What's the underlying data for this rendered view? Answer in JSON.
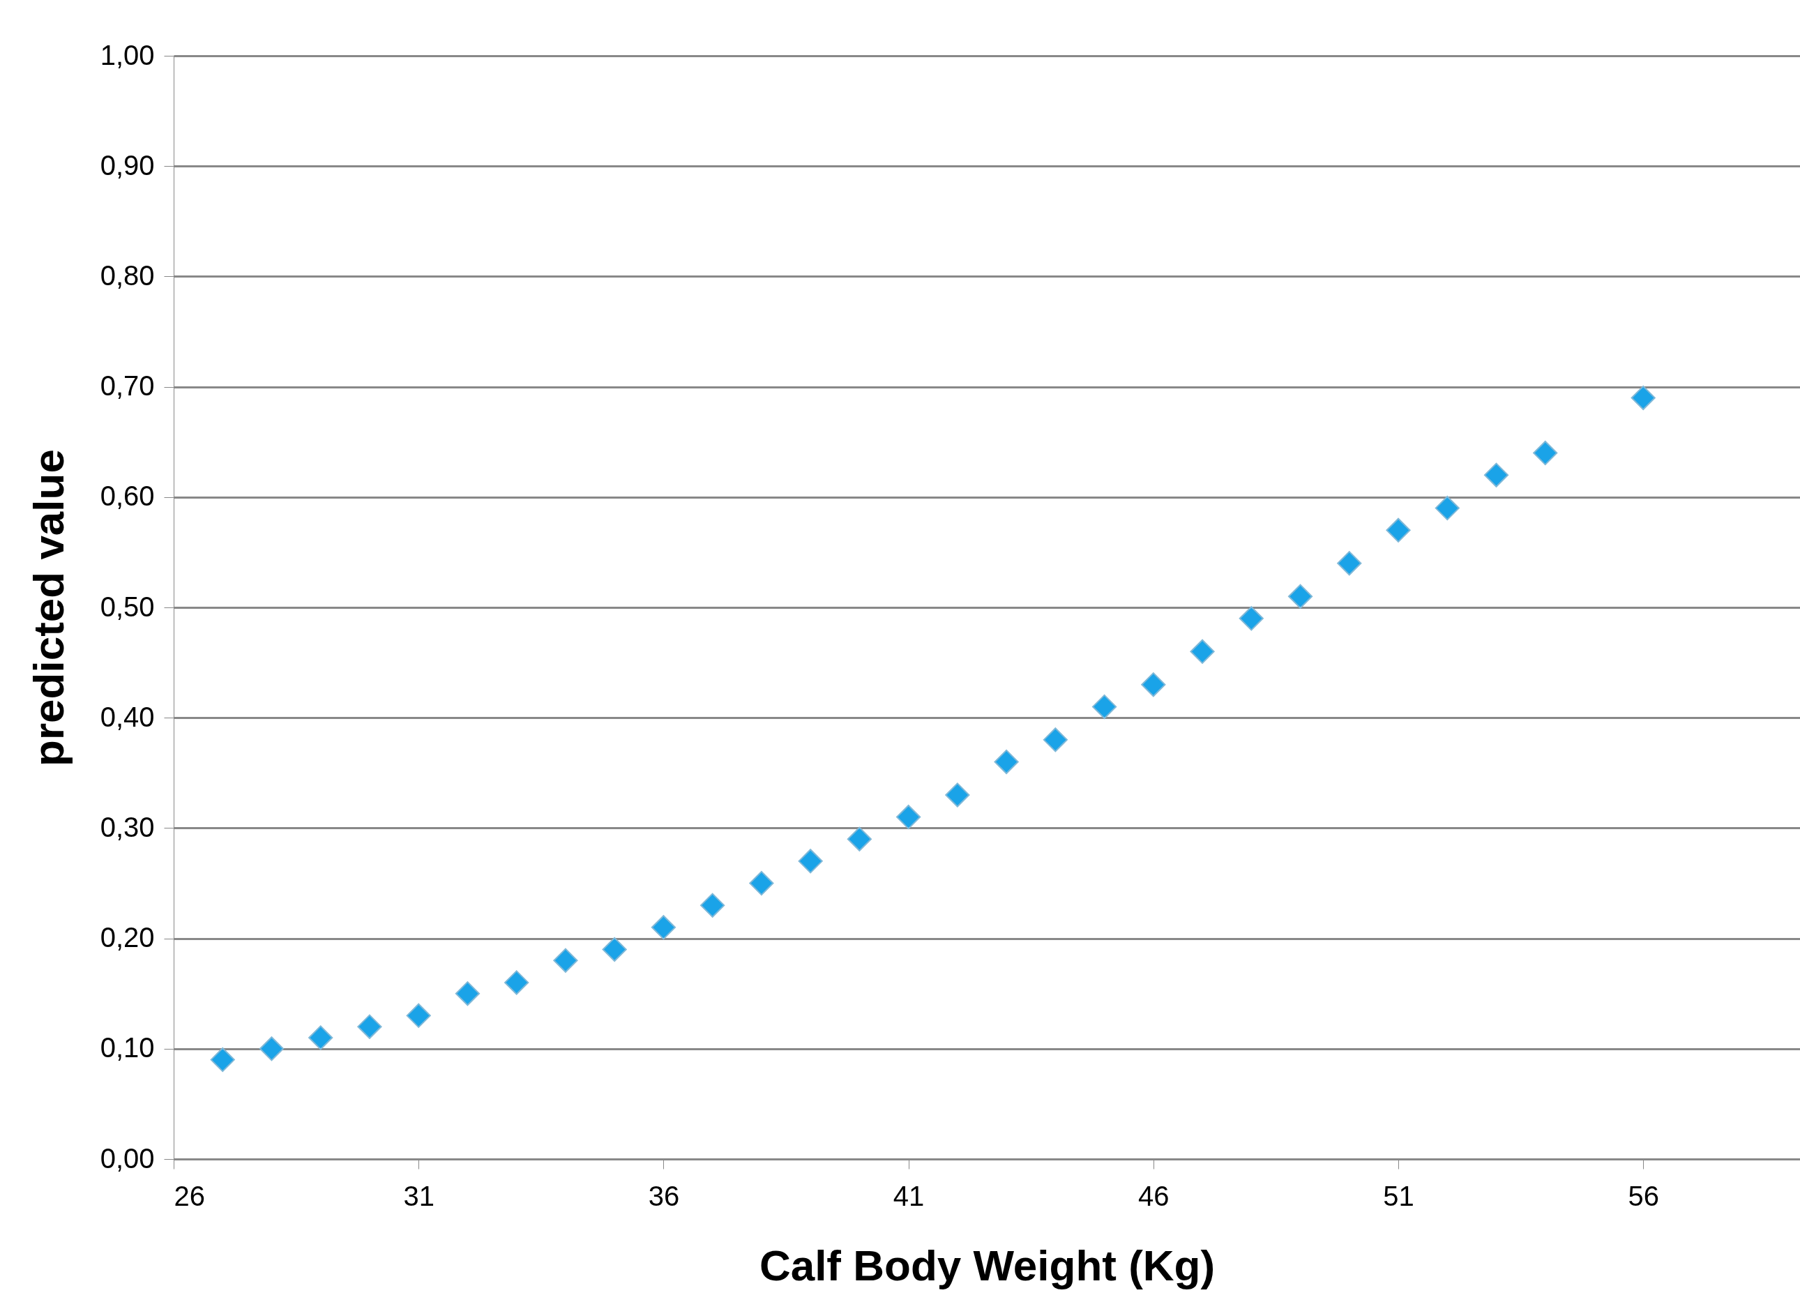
{
  "chart_data": {
    "type": "scatter",
    "xlabel": "Calf Body Weight (Kg)",
    "ylabel": "predicted value",
    "x": [
      27,
      28,
      29,
      30,
      31,
      32,
      33,
      34,
      35,
      36,
      37,
      38,
      39,
      40,
      41,
      42,
      43,
      44,
      45,
      46,
      47,
      48,
      49,
      50,
      51,
      52,
      53,
      54,
      56
    ],
    "series": [
      {
        "color": "#1aa3e8",
        "values": [
          0.09,
          0.1,
          0.11,
          0.12,
          0.13,
          0.15,
          0.16,
          0.18,
          0.19,
          0.21,
          0.23,
          0.25,
          0.27,
          0.29,
          0.31,
          0.33,
          0.36,
          0.38,
          0.41,
          0.43,
          0.46,
          0.49,
          0.51,
          0.54,
          0.57,
          0.59,
          0.62,
          0.64,
          0.69
        ]
      }
    ],
    "xlim": [
      26,
      59.2
    ],
    "xticks": [
      26,
      31,
      36,
      41,
      46,
      51,
      56
    ],
    "ylim": [
      0,
      1
    ],
    "yticks": [
      {
        "value": 0,
        "label": "0,00"
      },
      {
        "value": 0.1,
        "label": "0,10"
      },
      {
        "value": 0.2,
        "label": "0,20"
      },
      {
        "value": 0.3,
        "label": "0,30"
      },
      {
        "value": 0.4,
        "label": "0,40"
      },
      {
        "value": 0.5,
        "label": "0,50"
      },
      {
        "value": 0.6,
        "label": "0,60"
      },
      {
        "value": 0.7,
        "label": "0,70"
      },
      {
        "value": 0.8,
        "label": "0,80"
      },
      {
        "value": 0.9,
        "label": "0,90"
      },
      {
        "value": 1.0,
        "label": "1,00"
      }
    ],
    "grid": "y",
    "marker": "diamond",
    "legend": false
  }
}
